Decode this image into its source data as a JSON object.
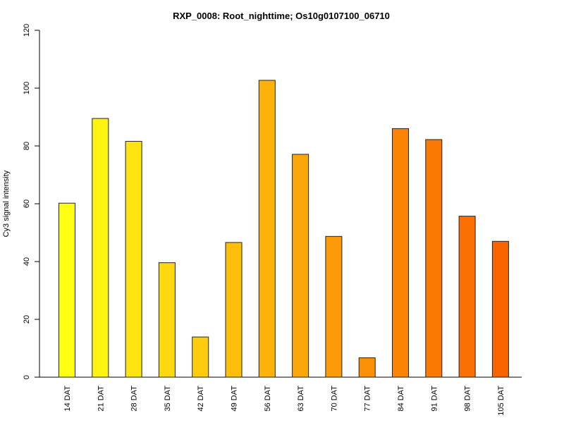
{
  "chart_data": {
    "type": "bar",
    "title": "RXP_0008: Root_nighttime; Os10g0107100_06710",
    "xlabel": "",
    "ylabel": "Cy3 signal intensity",
    "ylim": [
      0,
      120
    ],
    "yticks": [
      0,
      20,
      40,
      60,
      80,
      100,
      120
    ],
    "categories": [
      "14 DAT",
      "21 DAT",
      "28 DAT",
      "35 DAT",
      "42 DAT",
      "49 DAT",
      "56 DAT",
      "63 DAT",
      "70 DAT",
      "77 DAT",
      "84 DAT",
      "91 DAT",
      "98 DAT",
      "105 DAT"
    ],
    "values": [
      60.2,
      89.5,
      81.6,
      39.6,
      13.9,
      46.6,
      102.7,
      77.1,
      48.7,
      6.7,
      86.0,
      82.2,
      55.7,
      47.0
    ],
    "colors": [
      "#FFFF14",
      "#FFF312",
      "#FEE511",
      "#FED80F",
      "#FECB0D",
      "#FDBE0C",
      "#FDB20A",
      "#FCA709",
      "#FC9B07",
      "#FB8F06",
      "#FB8405",
      "#FA7903",
      "#FA6E02",
      "#F96401"
    ],
    "grid": false,
    "legend": "none"
  }
}
